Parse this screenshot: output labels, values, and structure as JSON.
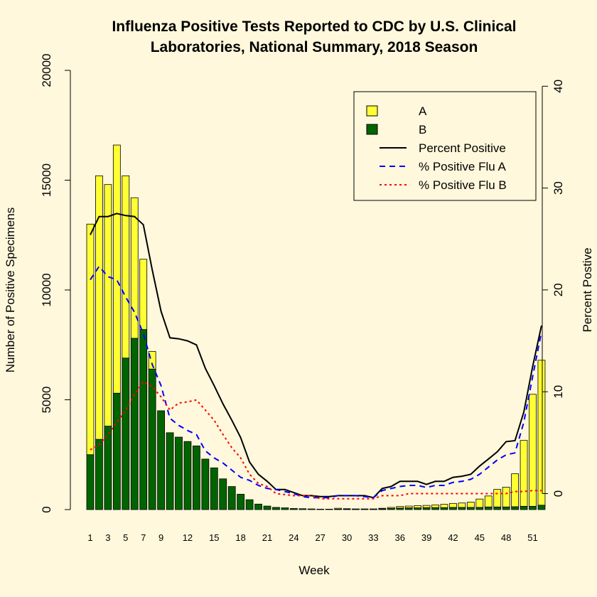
{
  "chart_data": {
    "type": "bar",
    "title_line1": "Influenza Positive Tests Reported to CDC by U.S. Clinical",
    "title_line2": "Laboratories, National Summary, 2018 Season",
    "xlabel": "Week",
    "ylabel_left": "Number of Positive Specimens",
    "ylabel_right": "Percent Postive",
    "ylim_left": [
      0,
      20000
    ],
    "ylim_right": [
      0,
      40
    ],
    "yticks_left": [
      "0",
      "5000",
      "10000",
      "15000",
      "20000"
    ],
    "yticks_right": [
      "0",
      "10",
      "20",
      "30",
      "40"
    ],
    "x_tick_labels": [
      "1",
      "3",
      "5",
      "7",
      "9",
      "12",
      "15",
      "18",
      "21",
      "24",
      "27",
      "30",
      "33",
      "36",
      "39",
      "42",
      "45",
      "48",
      "51"
    ],
    "x_tick_weeks": [
      1,
      3,
      5,
      7,
      9,
      12,
      15,
      18,
      21,
      24,
      27,
      30,
      33,
      36,
      39,
      42,
      45,
      48,
      51
    ],
    "weeks": [
      1,
      2,
      3,
      4,
      5,
      6,
      7,
      8,
      9,
      10,
      11,
      12,
      13,
      14,
      15,
      16,
      17,
      18,
      19,
      20,
      21,
      22,
      23,
      24,
      25,
      26,
      27,
      28,
      29,
      30,
      31,
      32,
      33,
      34,
      35,
      36,
      37,
      38,
      39,
      40,
      41,
      42,
      43,
      44,
      45,
      46,
      47,
      48,
      49,
      50,
      51,
      52
    ],
    "series": [
      {
        "name": "A",
        "color": "#FFFF33",
        "values": [
          10500,
          12000,
          11000,
          11300,
          8300,
          6400,
          3200,
          800,
          0,
          0,
          0,
          0,
          0,
          0,
          0,
          0,
          0,
          0,
          0,
          0,
          0,
          0,
          0,
          0,
          0,
          0,
          0,
          0,
          40,
          20,
          10,
          10,
          10,
          30,
          50,
          70,
          80,
          100,
          100,
          120,
          150,
          180,
          200,
          240,
          380,
          500,
          800,
          900,
          1500,
          3000,
          5100,
          6600
        ]
      },
      {
        "name": "B",
        "color": "#006400",
        "values": [
          2500,
          3200,
          3800,
          5300,
          6900,
          7800,
          8200,
          6400,
          4500,
          3500,
          3300,
          3100,
          2900,
          2300,
          1900,
          1400,
          1050,
          700,
          450,
          250,
          160,
          100,
          80,
          50,
          40,
          30,
          20,
          20,
          20,
          20,
          20,
          20,
          20,
          30,
          50,
          70,
          80,
          80,
          90,
          90,
          90,
          100,
          100,
          100,
          100,
          120,
          120,
          120,
          130,
          150,
          150,
          200
        ]
      }
    ],
    "lines": [
      {
        "name": "Percent Positive",
        "color": "#000000",
        "dash": "",
        "values": [
          25.4,
          27.2,
          27.2,
          27.5,
          27.3,
          27.2,
          26.4,
          22.0,
          17.9,
          15.3,
          15.2,
          15.0,
          14.6,
          12.3,
          10.6,
          8.8,
          7.2,
          5.5,
          3.1,
          1.9,
          1.2,
          0.4,
          0.4,
          0.1,
          -0.2,
          -0.2,
          -0.3,
          -0.3,
          -0.2,
          -0.2,
          -0.2,
          -0.2,
          -0.4,
          0.5,
          0.7,
          1.2,
          1.2,
          1.2,
          0.9,
          1.2,
          1.2,
          1.6,
          1.7,
          1.9,
          2.7,
          3.4,
          4.1,
          5.1,
          5.2,
          8.0,
          12.5,
          16.5
        ]
      },
      {
        "name": "% Positive Flu A",
        "color": "#0000FF",
        "dash": "8,6",
        "values": [
          21.0,
          22.3,
          21.3,
          21.0,
          19.3,
          17.8,
          15.7,
          12.7,
          10.6,
          7.4,
          6.7,
          6.2,
          5.8,
          4.2,
          3.5,
          3.0,
          2.3,
          1.6,
          1.3,
          0.8,
          0.5,
          0.4,
          0.2,
          0.0,
          -0.3,
          -0.4,
          -0.4,
          -0.4,
          -0.2,
          -0.2,
          -0.2,
          -0.3,
          -0.4,
          0.3,
          0.5,
          0.7,
          0.8,
          0.8,
          0.6,
          0.8,
          0.8,
          1.1,
          1.2,
          1.4,
          1.9,
          2.6,
          3.3,
          3.8,
          4.0,
          7.0,
          11.5,
          15.9
        ]
      },
      {
        "name": "% Positive Flu B",
        "color": "#FF0000",
        "dash": "3,4",
        "values": [
          4.3,
          4.8,
          5.8,
          7.0,
          8.2,
          9.7,
          11.0,
          10.5,
          9.5,
          8.2,
          8.9,
          9.0,
          9.2,
          8.2,
          7.2,
          5.8,
          4.5,
          3.5,
          1.9,
          1.0,
          0.7,
          0.0,
          -0.1,
          -0.2,
          -0.2,
          -0.2,
          -0.5,
          -0.5,
          -0.5,
          -0.5,
          -0.5,
          -0.5,
          -0.5,
          -0.2,
          -0.2,
          -0.2,
          0.0,
          0.0,
          0.0,
          0.0,
          0.0,
          0.0,
          0.0,
          0.0,
          0.0,
          0.0,
          0.0,
          0.0,
          0.2,
          0.2,
          0.3,
          0.3
        ]
      }
    ],
    "legend": {
      "placement": "top-right",
      "entries": [
        {
          "label": "A",
          "kind": "box",
          "color": "#FFFF33"
        },
        {
          "label": "B",
          "kind": "box",
          "color": "#006400"
        },
        {
          "label": "Percent Positive",
          "kind": "line",
          "color": "#000000",
          "dash": ""
        },
        {
          "label": "% Positive Flu A",
          "kind": "line",
          "color": "#0000FF",
          "dash": "8,6"
        },
        {
          "label": "% Positive Flu B",
          "kind": "line",
          "color": "#FF0000",
          "dash": "3,4"
        }
      ]
    }
  }
}
